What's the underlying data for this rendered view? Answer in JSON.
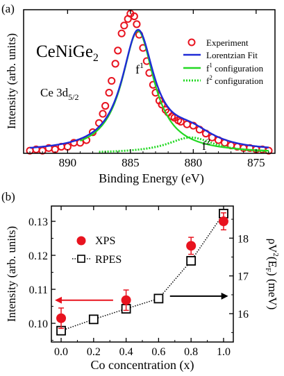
{
  "chart_data": [
    {
      "panel_label": "(a)",
      "type": "line",
      "xlabel": "Binding Energy (eV)",
      "ylabel": "Intensity (arb. units)",
      "xlim": [
        893.5,
        873.5
      ],
      "ylim": [
        0,
        1.09
      ],
      "x_reversed": true,
      "x_ticks": [
        890,
        885,
        880,
        875
      ],
      "y_ticks_labeled": false,
      "title": "CeNiGe",
      "title_sub": "2",
      "subtitle": "Ce 3d",
      "subtitle_sub": "5/2",
      "annotations": [
        {
          "text": "f",
          "sup": "1",
          "x": 884.6,
          "y": 0.86
        },
        {
          "text": "f",
          "sup": "2",
          "x": 879.8,
          "y": 0.03
        }
      ],
      "legend": {
        "position": "right",
        "entries": [
          {
            "label": "Experiment",
            "color": "#e8131f",
            "style": "circle"
          },
          {
            "label": "Lorentzian Fit",
            "color": "#1f2bd6",
            "style": "solid"
          },
          {
            "label_main": "f",
            "label_sup": "1",
            "label_rest": " configuration",
            "color": "#22d822",
            "style": "solid"
          },
          {
            "label_main": "f",
            "label_sup": "2",
            "label_rest": " configuration",
            "color": "#22d822",
            "style": "dotted"
          }
        ]
      },
      "series": [
        {
          "name": "Experiment",
          "color": "#e8131f",
          "type": "scatter",
          "x": [
            893.0,
            892.5,
            892.0,
            891.5,
            891.0,
            890.5,
            890.0,
            889.5,
            889.0,
            888.5,
            888.0,
            887.5,
            887.2,
            887.0,
            886.7,
            886.5,
            886.2,
            886.0,
            885.7,
            885.5,
            885.2,
            885.0,
            884.7,
            884.5,
            884.3,
            884.0,
            883.7,
            883.5,
            883.2,
            883.0,
            882.7,
            882.5,
            882.2,
            882.0,
            881.7,
            881.5,
            881.2,
            881.0,
            880.5,
            880.0,
            879.5,
            879.0,
            878.5,
            878.0,
            877.5,
            877.0,
            876.5,
            876.0,
            875.5,
            875.0,
            874.5,
            874.0
          ],
          "y": [
            0.02,
            0.03,
            0.02,
            0.04,
            0.03,
            0.05,
            0.05,
            0.08,
            0.08,
            0.1,
            0.16,
            0.23,
            0.3,
            0.36,
            0.46,
            0.55,
            0.68,
            0.78,
            0.91,
            0.97,
            1.02,
            1.06,
            1.04,
            0.98,
            0.9,
            0.8,
            0.7,
            0.61,
            0.52,
            0.46,
            0.4,
            0.37,
            0.33,
            0.31,
            0.28,
            0.27,
            0.25,
            0.24,
            0.22,
            0.21,
            0.18,
            0.15,
            0.12,
            0.1,
            0.08,
            0.06,
            0.05,
            0.04,
            0.04,
            0.03,
            0.03,
            0.02
          ]
        },
        {
          "name": "Lorentzian Fit",
          "color": "#1f2bd6",
          "type": "line",
          "curves": [
            {
              "x0": 884.4,
              "gamma": 1.55,
              "amp": 0.9
            },
            {
              "x0": 880.2,
              "gamma": 2.3,
              "amp": 0.12
            }
          ],
          "baseline": 0.01,
          "x_range": [
            893.0,
            874.0
          ]
        },
        {
          "name": "f1 configuration",
          "color": "#22d822",
          "type": "line",
          "curves": [
            {
              "x0": 884.4,
              "gamma": 1.55,
              "amp": 0.93
            }
          ],
          "baseline": 0.0,
          "x_range": [
            889.0,
            874.0
          ]
        },
        {
          "name": "f2 configuration",
          "color": "#22d822",
          "type": "line",
          "dash": "dotted",
          "curves": [
            {
              "x0": 880.2,
              "gamma": 2.3,
              "amp": 0.12
            }
          ],
          "baseline": 0.0,
          "x_range": [
            887.5,
            874.0
          ]
        }
      ]
    },
    {
      "panel_label": "(b)",
      "type": "scatter",
      "xlabel": "Co concentration (x)",
      "ylabel": "Intensity (arb. units)",
      "ylabel_right": "ρV²(Eₙ) (meV)",
      "ylabel_right_parts": {
        "main": "ρV",
        "sup": "2",
        "mid": "(E",
        "sub": "F",
        "end": ") (meV)"
      },
      "xlim": [
        -0.06,
        1.06
      ],
      "ylim_left": [
        0.0945,
        0.1345
      ],
      "ylim_right": [
        15.25,
        18.85
      ],
      "x_ticks": [
        "0.0",
        "0.2",
        "0.4",
        "0.6",
        "0.8",
        "1.0"
      ],
      "y_ticks_left": [
        "0.10",
        "0.11",
        "0.12",
        "0.13"
      ],
      "y_ticks_right": [
        "16",
        "17",
        "18"
      ],
      "legend": {
        "position": "upper-left",
        "entries": [
          {
            "label": "XPS",
            "color": "#e8131f",
            "style": "filled-circle"
          },
          {
            "label": "RPES",
            "color": "#000000",
            "style": "dotted-square"
          }
        ]
      },
      "series": [
        {
          "name": "XPS",
          "axis": "left",
          "color": "#e8131f",
          "x": [
            0.0,
            0.4,
            0.8,
            1.0
          ],
          "y": [
            0.1015,
            0.1068,
            0.1228,
            0.13
          ],
          "yerr": [
            0.003,
            0.003,
            0.0025,
            0.0025
          ]
        },
        {
          "name": "RPES",
          "axis": "right",
          "color": "#000000",
          "x": [
            0.0,
            0.2,
            0.4,
            0.6,
            0.8,
            1.0
          ],
          "y": [
            15.55,
            15.85,
            16.13,
            16.4,
            17.4,
            18.65
          ]
        }
      ],
      "arrows": [
        {
          "direction": "left",
          "color": "#e8131f",
          "from_x": 0.32,
          "to_x": -0.03,
          "y": 0.1068
        },
        {
          "direction": "right",
          "color": "#000000",
          "from_x": 0.67,
          "to_x": 1.02,
          "y": 0.108
        }
      ]
    }
  ]
}
